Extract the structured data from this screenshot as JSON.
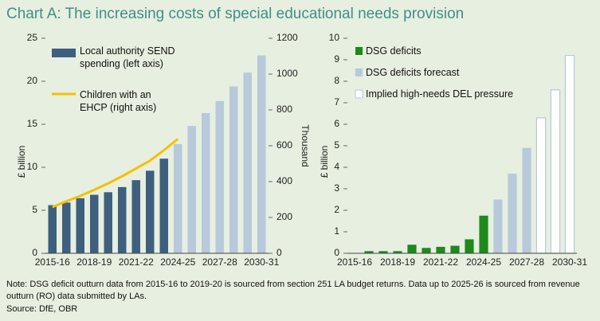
{
  "title": "Chart A: The increasing costs of special educational needs provision",
  "note": "Note: DSG deficit outturn data from 2015-16 to 2019-20 is sourced from section 251 LA budget returns. Data up to 2025-26 is sourced from revenue outturn (RO) data submitted by LAs.",
  "source": "Source: DfE, OBR",
  "chart_data": [
    {
      "type": "bar",
      "ylabel": "£ billion",
      "y2label": "Thousand",
      "categories": [
        "2015-16",
        null,
        null,
        "2018-19",
        null,
        null,
        "2021-22",
        null,
        null,
        "2024-25",
        null,
        null,
        "2027-28",
        null,
        null,
        "2030-31"
      ],
      "ylim": [
        0,
        25
      ],
      "yticks": [
        0,
        5,
        10,
        15,
        20,
        25
      ],
      "y2lim": [
        0,
        1200
      ],
      "y2ticks": [
        0,
        200,
        400,
        600,
        800,
        1000,
        1200
      ],
      "series": [
        {
          "name": "Local authority SEND spending (left axis)",
          "color": "#3e5f7e",
          "type": "bar",
          "colors": [
            "#3e5f7e",
            "#3e5f7e",
            "#3e5f7e",
            "#3e5f7e",
            "#3e5f7e",
            "#3e5f7e",
            "#3e5f7e",
            "#3e5f7e",
            "#3e5f7e",
            "#b7c9da",
            "#b7c9da",
            "#b7c9da",
            "#b7c9da",
            "#b7c9da",
            "#b7c9da",
            "#b7c9da"
          ],
          "values": [
            5.6,
            5.9,
            6.4,
            6.8,
            7.1,
            7.7,
            8.5,
            9.6,
            11.0,
            12.7,
            14.8,
            16.3,
            17.7,
            19.4,
            21.0,
            23.0
          ]
        },
        {
          "name": "Children with an EHCP (right axis)",
          "color": "#f5c000",
          "type": "line",
          "axis": "y2",
          "values": [
            258,
            290,
            320,
            354,
            390,
            430,
            473,
            517,
            575,
            638,
            null,
            null,
            null,
            null,
            null,
            null
          ]
        }
      ]
    },
    {
      "type": "bar",
      "ylabel": "£ billion",
      "categories": [
        "2015-16",
        null,
        null,
        "2018-19",
        null,
        null,
        "2021-22",
        null,
        null,
        "2024-25",
        null,
        null,
        "2027-28",
        null,
        null,
        "2030-31"
      ],
      "ylim": [
        0,
        10
      ],
      "yticks": [
        0,
        1,
        2,
        3,
        4,
        5,
        6,
        7,
        8,
        9,
        10
      ],
      "series": [
        {
          "name": "DSG deficits",
          "color": "#1c8a1c",
          "type": "bar",
          "values": [
            null,
            0.1,
            0.1,
            0.1,
            0.4,
            0.25,
            0.3,
            0.35,
            0.65,
            1.75,
            null,
            null,
            null,
            null,
            null,
            null
          ]
        },
        {
          "name": "DSG deficits forecast",
          "color": "#b7c9da",
          "type": "bar",
          "values": [
            null,
            null,
            null,
            null,
            null,
            null,
            null,
            null,
            null,
            null,
            2.5,
            3.7,
            4.9,
            null,
            null,
            null
          ]
        },
        {
          "name": "Implied high-needs DEL pressure",
          "color": "#ffffff",
          "stroke": "#b7c9da",
          "type": "bar",
          "values": [
            null,
            null,
            null,
            null,
            null,
            null,
            null,
            null,
            null,
            null,
            null,
            null,
            null,
            6.3,
            7.6,
            9.2
          ]
        }
      ]
    }
  ]
}
